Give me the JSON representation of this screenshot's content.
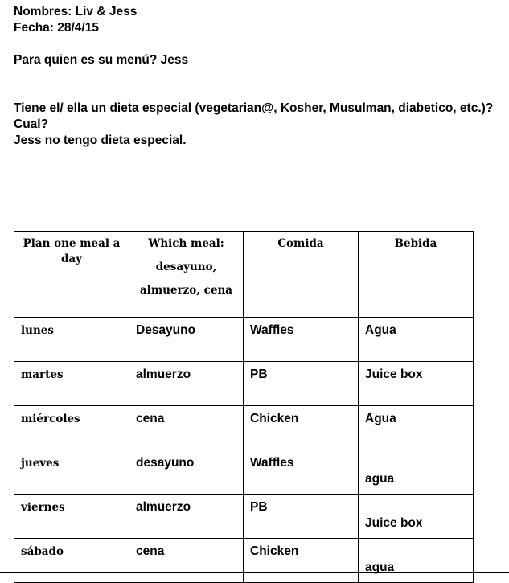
{
  "header": {
    "names": "Nombres: Liv & Jess",
    "date": "Fecha: 28/4/15",
    "question1": "Para quien es su menú? Jess",
    "question2": "Tiene el/ ella un dieta especial (vegetarian@, Kosher, Musulman, diabetico, etc.)?",
    "question2b": "Cual?",
    "answer2": "Jess no tengo dieta especial."
  },
  "table": {
    "headers": [
      "Plan one meal a day",
      "Which meal:",
      "desayuno,",
      "almuerzo, cena",
      "Comida",
      "Bebida"
    ],
    "rows": [
      {
        "day": "lunes",
        "meal": "Desayuno",
        "food": "Waffles",
        "drink": "Agua"
      },
      {
        "day": "martes",
        "meal": "almuerzo",
        "food": "PB",
        "drink": "Juice box"
      },
      {
        "day": "miércoles",
        "meal": "cena",
        "food": "Chicken",
        "drink": "Agua"
      },
      {
        "day": "jueves",
        "meal": "desayuno",
        "food": "Waffles",
        "drink": "agua"
      },
      {
        "day": "viernes",
        "meal": "almuerzo",
        "food": "PB",
        "drink": "Juice box"
      },
      {
        "day": "sábado",
        "meal": "cena",
        "food": "Chicken",
        "drink": "agua"
      }
    ]
  }
}
